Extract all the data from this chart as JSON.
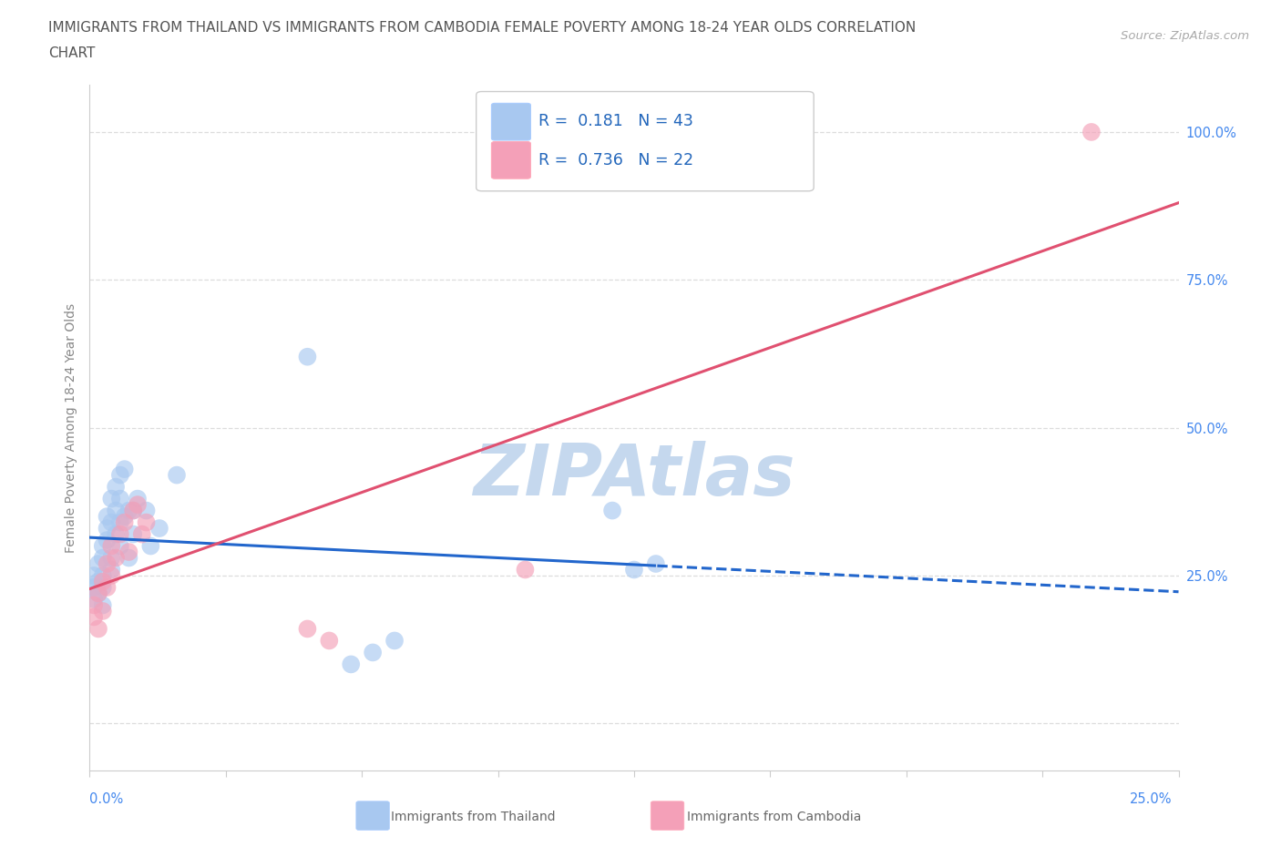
{
  "title_line1": "IMMIGRANTS FROM THAILAND VS IMMIGRANTS FROM CAMBODIA FEMALE POVERTY AMONG 18-24 YEAR OLDS CORRELATION",
  "title_line2": "CHART",
  "source": "Source: ZipAtlas.com",
  "ylabel": "Female Poverty Among 18-24 Year Olds",
  "thailand_color": "#A8C8F0",
  "cambodia_color": "#F4A0B8",
  "thailand_line_color": "#2266CC",
  "cambodia_line_color": "#E05070",
  "thailand_R": 0.181,
  "thailand_N": 43,
  "cambodia_R": 0.736,
  "cambodia_N": 22,
  "watermark": "ZIPAtlas",
  "watermark_color": "#C5D8EE",
  "xlim": [
    0.0,
    0.25
  ],
  "ylim": [
    -0.08,
    1.08
  ],
  "yticks": [
    0.0,
    0.25,
    0.5,
    0.75,
    1.0
  ],
  "ytick_labels": [
    "",
    "25.0%",
    "50.0%",
    "75.0%",
    "100.0%"
  ],
  "thailand_x": [
    0.001,
    0.001,
    0.001,
    0.002,
    0.002,
    0.002,
    0.003,
    0.003,
    0.003,
    0.003,
    0.003,
    0.004,
    0.004,
    0.004,
    0.005,
    0.005,
    0.005,
    0.005,
    0.006,
    0.006,
    0.006,
    0.007,
    0.007,
    0.007,
    0.007,
    0.008,
    0.008,
    0.009,
    0.009,
    0.01,
    0.01,
    0.011,
    0.013,
    0.014,
    0.016,
    0.02,
    0.05,
    0.06,
    0.065,
    0.07,
    0.12,
    0.125,
    0.13
  ],
  "thailand_y": [
    0.25,
    0.23,
    0.21,
    0.27,
    0.24,
    0.22,
    0.3,
    0.28,
    0.25,
    0.23,
    0.2,
    0.35,
    0.33,
    0.31,
    0.38,
    0.34,
    0.28,
    0.26,
    0.4,
    0.36,
    0.32,
    0.42,
    0.38,
    0.34,
    0.3,
    0.43,
    0.35,
    0.36,
    0.28,
    0.36,
    0.32,
    0.38,
    0.36,
    0.3,
    0.33,
    0.42,
    0.62,
    0.1,
    0.12,
    0.14,
    0.36,
    0.26,
    0.27
  ],
  "cambodia_x": [
    0.001,
    0.001,
    0.002,
    0.002,
    0.003,
    0.003,
    0.004,
    0.004,
    0.005,
    0.005,
    0.006,
    0.007,
    0.008,
    0.009,
    0.01,
    0.011,
    0.012,
    0.013,
    0.05,
    0.055,
    0.1,
    0.23
  ],
  "cambodia_y": [
    0.2,
    0.18,
    0.22,
    0.16,
    0.24,
    0.19,
    0.27,
    0.23,
    0.3,
    0.25,
    0.28,
    0.32,
    0.34,
    0.29,
    0.36,
    0.37,
    0.32,
    0.34,
    0.16,
    0.14,
    0.26,
    1.0
  ]
}
